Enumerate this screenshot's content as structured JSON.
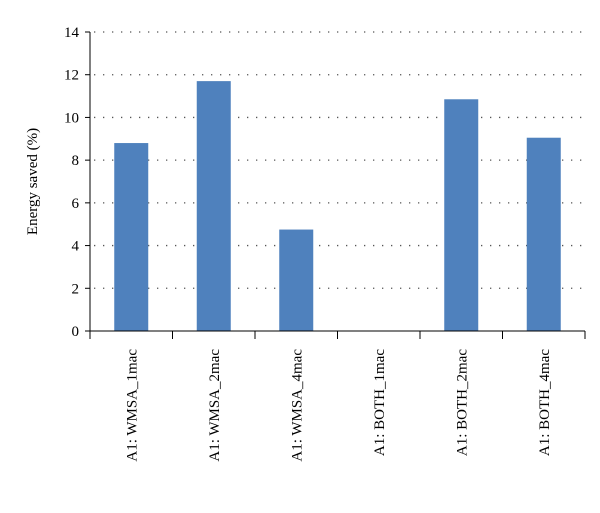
{
  "chart_data": {
    "type": "bar",
    "title": "",
    "xlabel": "",
    "ylabel": "Energy saved (%)",
    "ylim": [
      0,
      14
    ],
    "yticks": [
      0,
      2,
      4,
      6,
      8,
      10,
      12,
      14
    ],
    "grid": true,
    "categories": [
      "A1: WMSA_1mac",
      "A1: WMSA_2mac",
      "A1: WMSA_4mac",
      "A1: BOTH_1mac",
      "A1: BOTH_2mac",
      "A1: BOTH_4mac"
    ],
    "values": [
      8.8,
      11.7,
      4.75,
      0,
      10.85,
      9.05
    ],
    "bar_color": "#4f81bd"
  }
}
